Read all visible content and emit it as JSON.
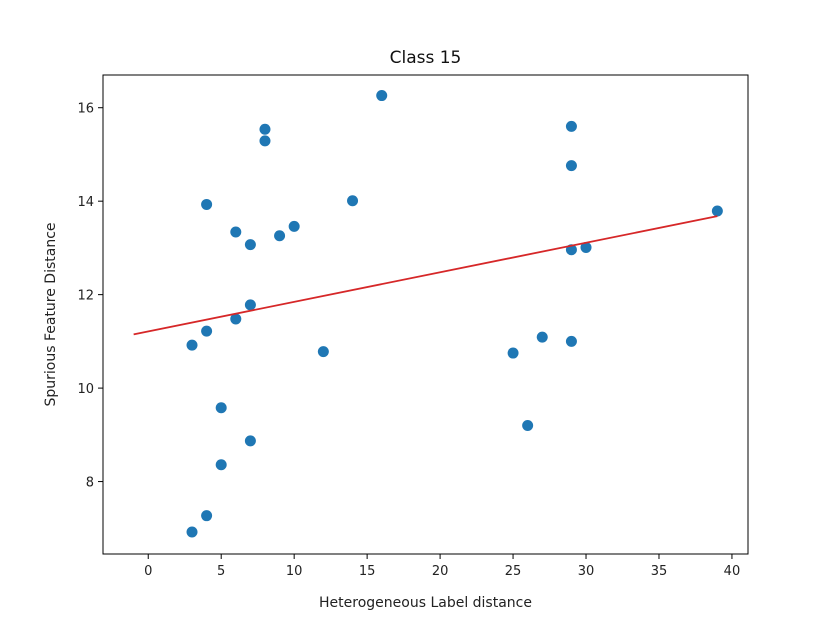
{
  "chart_data": {
    "type": "scatter",
    "title": "Class 15",
    "xlabel": "Heterogeneous Label distance",
    "ylabel": "Spurious Feature Distance",
    "xlim": [
      -3.1,
      41.1
    ],
    "ylim": [
      6.45,
      16.7
    ],
    "xticks": [
      0,
      5,
      10,
      15,
      20,
      25,
      30,
      35,
      40
    ],
    "yticks": [
      8,
      10,
      12,
      14,
      16
    ],
    "grid": false,
    "point_color": "#1f77b4",
    "line_color": "#d62728",
    "points": [
      {
        "x": 3,
        "y": 10.92
      },
      {
        "x": 3,
        "y": 6.92
      },
      {
        "x": 4,
        "y": 13.93
      },
      {
        "x": 4,
        "y": 11.22
      },
      {
        "x": 4,
        "y": 7.27
      },
      {
        "x": 5,
        "y": 9.58
      },
      {
        "x": 5,
        "y": 8.36
      },
      {
        "x": 6,
        "y": 13.34
      },
      {
        "x": 6,
        "y": 11.48
      },
      {
        "x": 7,
        "y": 13.07
      },
      {
        "x": 7,
        "y": 11.78
      },
      {
        "x": 7,
        "y": 8.87
      },
      {
        "x": 8,
        "y": 15.54
      },
      {
        "x": 8,
        "y": 15.29
      },
      {
        "x": 9,
        "y": 13.26
      },
      {
        "x": 10,
        "y": 13.46
      },
      {
        "x": 12,
        "y": 10.78
      },
      {
        "x": 14,
        "y": 14.01
      },
      {
        "x": 16,
        "y": 16.26
      },
      {
        "x": 25,
        "y": 10.75
      },
      {
        "x": 26,
        "y": 9.2
      },
      {
        "x": 27,
        "y": 11.09
      },
      {
        "x": 29,
        "y": 15.6
      },
      {
        "x": 29,
        "y": 14.76
      },
      {
        "x": 29,
        "y": 12.96
      },
      {
        "x": 29,
        "y": 11.0
      },
      {
        "x": 30,
        "y": 13.01
      },
      {
        "x": 39,
        "y": 13.79
      }
    ],
    "fit_line": {
      "x": [
        -1,
        39
      ],
      "y": [
        11.15,
        13.68
      ]
    }
  }
}
